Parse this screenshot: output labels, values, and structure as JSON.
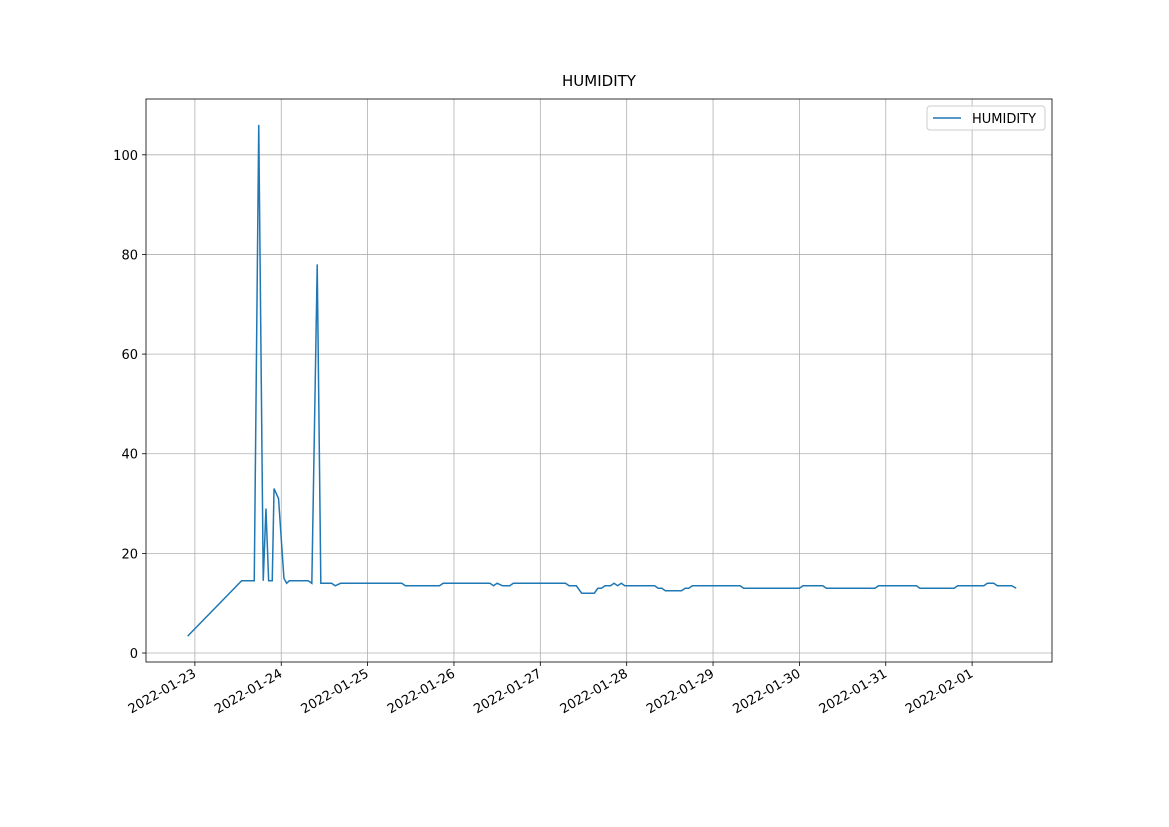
{
  "chart_data": {
    "type": "line",
    "title": "HUMIDITY",
    "x": [
      "2022-01-22T22:00",
      "2022-01-23T13:00",
      "2022-01-23T16:30",
      "2022-01-23T17:45",
      "2022-01-23T19:00",
      "2022-01-23T19:45",
      "2022-01-23T20:30",
      "2022-01-23T21:30",
      "2022-01-23T22:00",
      "2022-01-23T23:15",
      "2022-01-24T00:45",
      "2022-01-24T01:30",
      "2022-01-24T02:15",
      "2022-01-24T07:30",
      "2022-01-24T08:30",
      "2022-01-24T10:00",
      "2022-01-24T11:00",
      "2022-01-24T14:00",
      "2022-01-24T15:00",
      "2022-01-24T16:30",
      "2022-01-25T09:30",
      "2022-01-25T10:30",
      "2022-01-25T20:00",
      "2022-01-25T21:00",
      "2022-01-26T10:00",
      "2022-01-26T11:00",
      "2022-01-26T12:00",
      "2022-01-26T13:30",
      "2022-01-26T15:30",
      "2022-01-26T16:30",
      "2022-01-27T07:00",
      "2022-01-27T08:00",
      "2022-01-27T10:00",
      "2022-01-27T11:30",
      "2022-01-27T15:00",
      "2022-01-27T16:00",
      "2022-01-27T17:00",
      "2022-01-27T18:00",
      "2022-01-27T19:30",
      "2022-01-27T20:30",
      "2022-01-27T21:30",
      "2022-01-27T22:30",
      "2022-01-27T23:30",
      "2022-01-28T07:45",
      "2022-01-28T08:45",
      "2022-01-28T09:45",
      "2022-01-28T10:45",
      "2022-01-28T15:15",
      "2022-01-28T16:15",
      "2022-01-28T17:15",
      "2022-01-28T18:15",
      "2022-01-29T07:30",
      "2022-01-29T08:30",
      "2022-01-30T00:00",
      "2022-01-30T01:00",
      "2022-01-30T06:30",
      "2022-01-30T07:30",
      "2022-01-30T21:00",
      "2022-01-30T22:00",
      "2022-01-31T08:30",
      "2022-01-31T09:30",
      "2022-01-31T19:00",
      "2022-01-31T20:00",
      "2022-02-01T03:15",
      "2022-02-01T04:15",
      "2022-02-01T06:00",
      "2022-02-01T07:00",
      "2022-02-01T11:00",
      "2022-02-01T12:15"
    ],
    "series": [
      {
        "name": "HUMIDITY",
        "color": "#1f77b4",
        "values": [
          3.4,
          14.5,
          14.5,
          106,
          14.5,
          29,
          14.5,
          14.5,
          33,
          31,
          15,
          14,
          14.5,
          14.5,
          14,
          78,
          14,
          14,
          13.5,
          14,
          14,
          13.5,
          13.5,
          14,
          14,
          13.5,
          14,
          13.5,
          13.5,
          14,
          14,
          13.5,
          13.5,
          12,
          12,
          13,
          13,
          13.5,
          13.5,
          14,
          13.5,
          14,
          13.5,
          13.5,
          13,
          13,
          12.5,
          12.5,
          13,
          13,
          13.5,
          13.5,
          13,
          13,
          13.5,
          13.5,
          13,
          13,
          13.5,
          13.5,
          13,
          13,
          13.5,
          13.5,
          14,
          14,
          13.5,
          13.5,
          13
        ]
      }
    ],
    "xlim": [
      "2022-01-22T10:25",
      "2022-02-01T22:12"
    ],
    "xticks": [
      "2022-01-23",
      "2022-01-24",
      "2022-01-25",
      "2022-01-26",
      "2022-01-27",
      "2022-01-28",
      "2022-01-29",
      "2022-01-30",
      "2022-01-31",
      "2022-02-01"
    ],
    "ylim": [
      -1.8,
      111.2
    ],
    "yticks": [
      0,
      20,
      40,
      60,
      80,
      100
    ],
    "grid": true,
    "legend": "upper right"
  }
}
